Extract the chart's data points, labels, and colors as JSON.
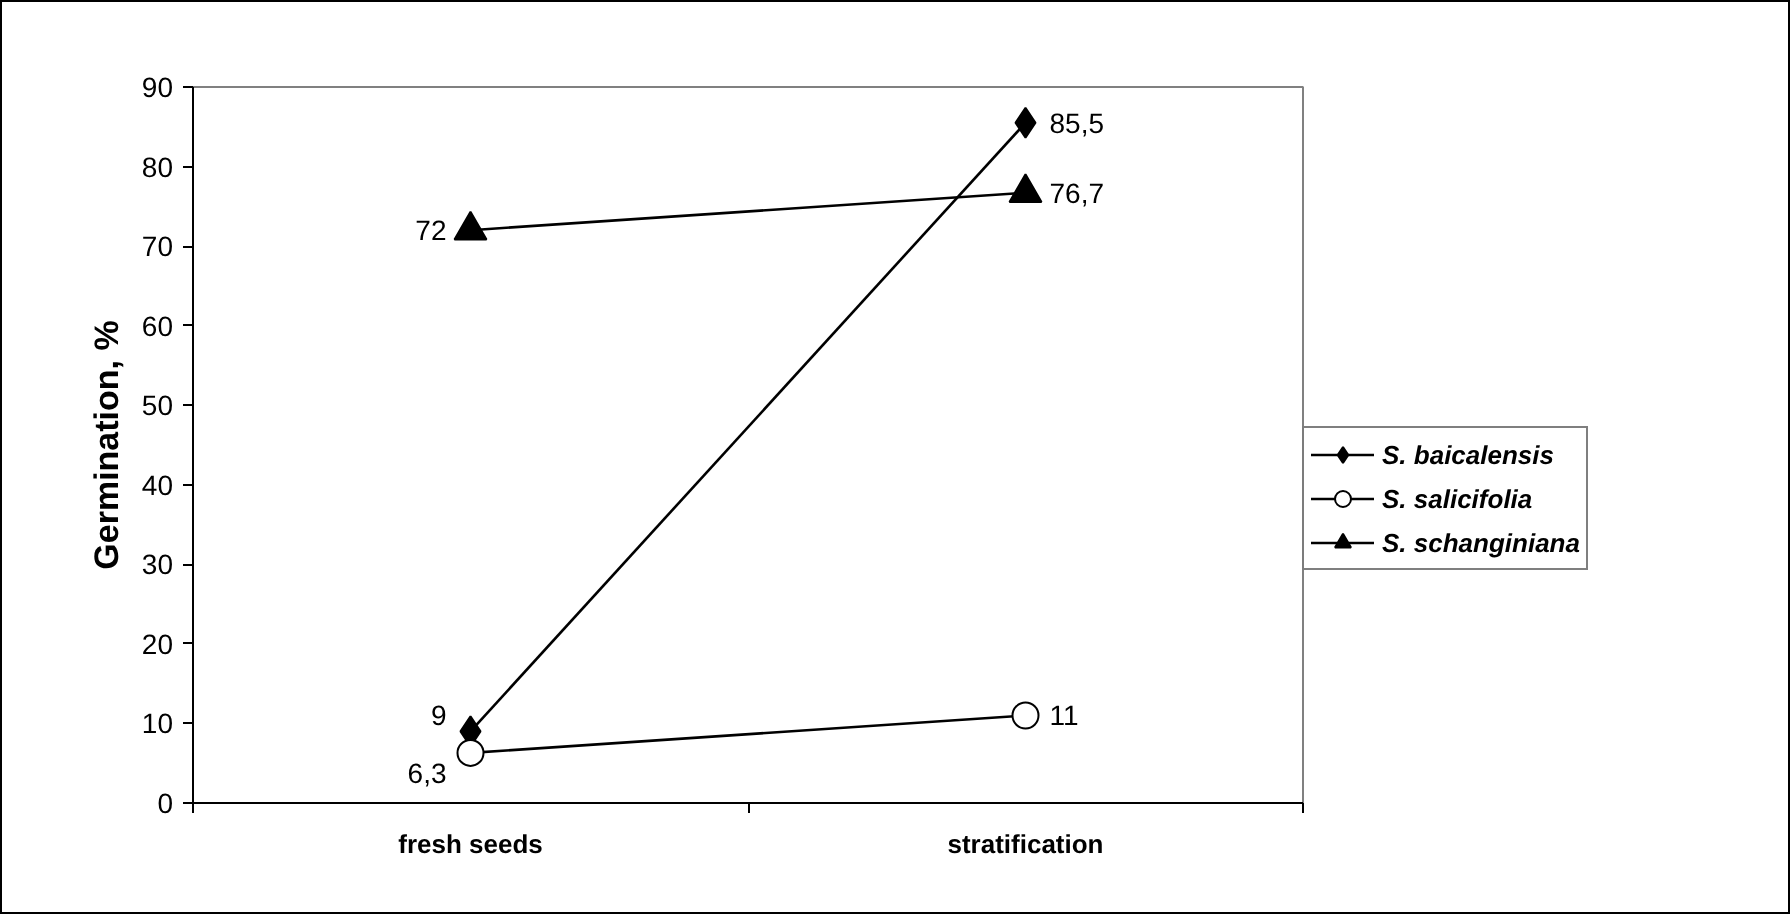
{
  "chart_data": {
    "type": "line",
    "ylabel": "Germination, %",
    "categories": [
      "fresh seeds",
      "stratification"
    ],
    "series": [
      {
        "name": "S. baicalensis",
        "color": "#000000",
        "marker": "diamond",
        "values": [
          9,
          85.5
        ],
        "value_labels": [
          "9",
          "85,5"
        ]
      },
      {
        "name": "S. salicifolia",
        "color": "#000000",
        "marker": "circle",
        "values": [
          6.3,
          11
        ],
        "value_labels": [
          "6,3",
          "11"
        ]
      },
      {
        "name": "S. schanginiana",
        "color": "#000000",
        "marker": "triangle",
        "values": [
          72,
          76.7
        ],
        "value_labels": [
          "72",
          "76,7"
        ]
      }
    ],
    "ylim": [
      0,
      90
    ],
    "yticks": [
      0,
      10,
      20,
      30,
      40,
      50,
      60,
      70,
      80,
      90
    ],
    "grid": false,
    "legend": "right",
    "line_style": "solid"
  }
}
